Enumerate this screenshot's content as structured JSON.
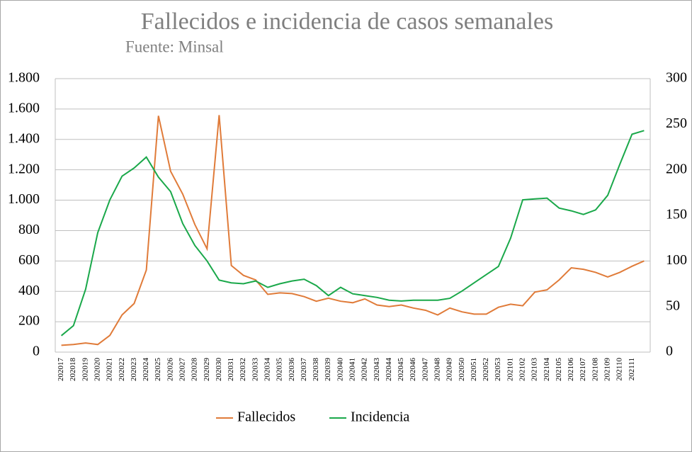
{
  "chart_data": {
    "type": "line",
    "title": "Fallecidos e incidencia de casos semanales",
    "subtitle": "Fuente: Minsal",
    "categories": [
      "202017",
      "202018",
      "202019",
      "202020",
      "202021",
      "202022",
      "202023",
      "202024",
      "202025",
      "202026",
      "202027",
      "202028",
      "202029",
      "202030",
      "202031",
      "202032",
      "202033",
      "202034",
      "202035",
      "202036",
      "202037",
      "202038",
      "202039",
      "202040",
      "202041",
      "202042",
      "202043",
      "202044",
      "202045",
      "202046",
      "202047",
      "202048",
      "202049",
      "202050",
      "202051",
      "202052",
      "202053",
      "202101",
      "202102",
      "202103",
      "202104",
      "202105",
      "202106",
      "202107",
      "202108",
      "202109",
      "202110",
      "202111",
      null
    ],
    "series": [
      {
        "name": "Fallecidos",
        "color": "#e07b39",
        "axis": "y",
        "values": [
          45,
          50,
          60,
          50,
          110,
          245,
          320,
          540,
          1555,
          1190,
          1040,
          840,
          680,
          1560,
          570,
          505,
          475,
          380,
          390,
          385,
          365,
          335,
          355,
          335,
          325,
          350,
          310,
          300,
          310,
          290,
          275,
          245,
          290,
          265,
          250,
          250,
          295,
          315,
          305,
          395,
          410,
          475,
          555,
          545,
          525,
          495,
          525,
          565,
          600
        ]
      },
      {
        "name": "Incidencia",
        "color": "#1aa84a",
        "axis": "y2",
        "values": [
          18,
          29,
          69,
          131,
          167,
          193,
          202,
          214,
          192,
          176,
          141,
          117,
          100,
          79,
          76,
          75,
          78,
          71,
          75,
          78,
          80,
          73,
          62,
          71,
          64,
          62,
          60,
          57,
          56,
          57,
          57,
          57,
          59,
          67,
          76,
          85,
          94,
          125,
          167,
          168,
          169,
          158,
          155,
          151,
          156,
          172,
          206,
          239,
          243
        ]
      }
    ],
    "ylim": [
      0,
      1800
    ],
    "yticks": [
      0,
      200,
      400,
      600,
      800,
      {
        "value": 1000,
        "label": "1.000"
      },
      {
        "value": 1200,
        "label": "1.200"
      },
      {
        "value": 1400,
        "label": "1.400"
      },
      {
        "value": 1600,
        "label": "1.600"
      },
      {
        "value": 1800,
        "label": "1.800"
      }
    ],
    "y2lim": [
      0,
      300
    ],
    "y2ticks": [
      0,
      50,
      100,
      150,
      200,
      250,
      300
    ],
    "grid": true,
    "legend": "bottom"
  }
}
